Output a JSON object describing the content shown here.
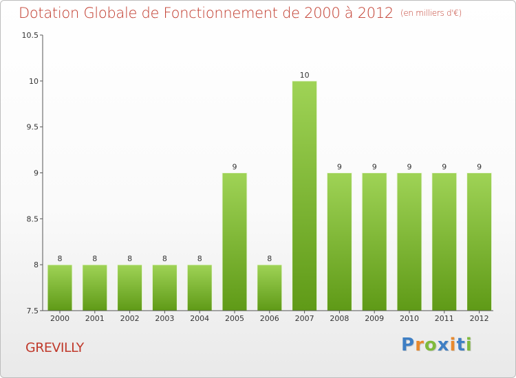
{
  "chart": {
    "title": "Dotation Globale de Fonctionnement de 2000 à 2012",
    "subtitle": "(en milliers d'€)"
  },
  "commune": "GREVILLY",
  "logo": {
    "text": "Proxiti",
    "letter_colors": [
      "#3f7fc4",
      "#e8892d",
      "#7fba3c",
      "#3f7fc4",
      "#e8892d",
      "#3f7fc4",
      "#7fba3c"
    ]
  },
  "colors": {
    "title": "#c0392b",
    "bar_light": "#9fd356",
    "bar_dark": "#5f9a17",
    "axis": "#555555"
  },
  "chart_data": {
    "type": "bar",
    "title": "Dotation Globale de Fonctionnement de 2000 à 2012",
    "subtitle": "(en milliers d'€)",
    "categories": [
      "2000",
      "2001",
      "2002",
      "2003",
      "2004",
      "2005",
      "2006",
      "2007",
      "2008",
      "2009",
      "2010",
      "2011",
      "2012"
    ],
    "values": [
      8,
      8,
      8,
      8,
      8,
      9,
      8,
      10,
      9,
      9,
      9,
      9,
      9
    ],
    "data_labels": [
      "8",
      "8",
      "8",
      "8",
      "8",
      "9",
      "8",
      "10",
      "9",
      "9",
      "9",
      "9",
      "9"
    ],
    "ylim": [
      7.5,
      10.5
    ],
    "yticks": [
      7.5,
      8,
      8.5,
      9,
      9.5,
      10,
      10.5
    ],
    "ytick_labels": [
      "7.5",
      "8",
      "8.5",
      "9",
      "9.5",
      "10",
      "10.5"
    ],
    "xlabel": "",
    "ylabel": "",
    "grid": false,
    "legend": "none"
  }
}
